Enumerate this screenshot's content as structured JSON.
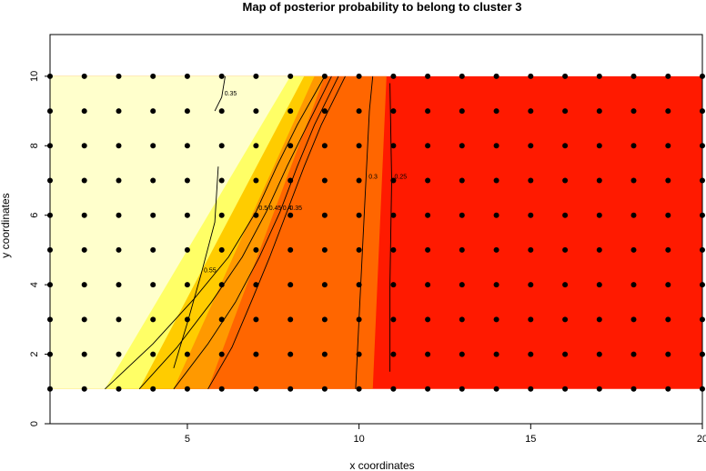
{
  "chart_data": {
    "type": "heatmap",
    "title": "Map of posterior probability to belong to cluster  3",
    "xlabel": "x coordinates",
    "ylabel": "y coordinates",
    "xlim": [
      1,
      20
    ],
    "ylim": [
      0,
      11.2
    ],
    "x_ticks": [
      5,
      10,
      15,
      20
    ],
    "y_ticks": [
      0,
      2,
      4,
      6,
      8,
      10
    ],
    "grid_points": {
      "x": [
        1,
        2,
        3,
        4,
        5,
        6,
        7,
        8,
        9,
        10,
        11,
        12,
        13,
        14,
        15,
        16,
        17,
        18,
        19,
        20
      ],
      "y": [
        1,
        2,
        3,
        4,
        5,
        6,
        7,
        8,
        9,
        10
      ]
    },
    "colors": {
      "lowest": "#ffffcc",
      "low": "#ffff66",
      "mid_low": "#ffcc00",
      "mid": "#ff9900",
      "mid_high": "#ff6600",
      "highest": "#ff1a00"
    },
    "regions": [
      {
        "label": "lowest",
        "color": "#ffffcc",
        "boundary_x": [
          [
            1,
            2.6
          ],
          [
            10,
            8.0
          ]
        ]
      },
      {
        "label": "low",
        "color": "#ffff66",
        "boundary_x": [
          [
            1,
            3.6
          ],
          [
            10,
            8.4
          ]
        ]
      },
      {
        "label": "mid_low",
        "color": "#ffcc00",
        "boundary_x": [
          [
            1,
            4.6
          ],
          [
            10,
            8.7
          ]
        ]
      },
      {
        "label": "mid",
        "color": "#ff9900",
        "boundary_x": [
          [
            1,
            5.6
          ],
          [
            10,
            9.0
          ]
        ]
      },
      {
        "label": "mid_high",
        "color": "#ff6600",
        "boundary_x": [
          [
            1,
            10.4
          ],
          [
            10,
            10.8
          ]
        ]
      },
      {
        "label": "highest",
        "color": "#ff1a00",
        "boundary_x": [
          [
            1,
            11.0
          ],
          [
            10,
            11.0
          ]
        ]
      }
    ],
    "contours": [
      {
        "label": "0.5",
        "points": [
          [
            2.6,
            1
          ],
          [
            4.0,
            2.3
          ],
          [
            5.2,
            3.6
          ],
          [
            6.2,
            4.8
          ],
          [
            7.0,
            6.1
          ],
          [
            7.6,
            7.4
          ],
          [
            8.2,
            8.6
          ],
          [
            9.0,
            10
          ]
        ]
      },
      {
        "label": "0.45",
        "points": [
          [
            3.6,
            1
          ],
          [
            4.7,
            2.2
          ],
          [
            5.7,
            3.5
          ],
          [
            6.6,
            4.8
          ],
          [
            7.3,
            6.1
          ],
          [
            7.9,
            7.4
          ],
          [
            8.5,
            8.6
          ],
          [
            9.2,
            10
          ]
        ]
      },
      {
        "label": "0.4",
        "points": [
          [
            4.6,
            1
          ],
          [
            5.6,
            2.3
          ],
          [
            6.4,
            3.5
          ],
          [
            7.1,
            4.8
          ],
          [
            7.7,
            6.1
          ],
          [
            8.2,
            7.4
          ],
          [
            8.7,
            8.6
          ],
          [
            9.4,
            10
          ]
        ]
      },
      {
        "label": "0.35",
        "points": [
          [
            5.6,
            1
          ],
          [
            6.3,
            2.2
          ],
          [
            6.9,
            3.6
          ],
          [
            7.4,
            4.8
          ],
          [
            7.9,
            6.1
          ],
          [
            8.4,
            7.4
          ],
          [
            8.9,
            8.6
          ],
          [
            9.6,
            10
          ]
        ]
      },
      {
        "label": "0.3",
        "points": [
          [
            9.9,
            1
          ],
          [
            10.0,
            3
          ],
          [
            10.1,
            5
          ],
          [
            10.2,
            7
          ],
          [
            10.3,
            9
          ],
          [
            10.4,
            10
          ]
        ]
      },
      {
        "label": "0.25",
        "points": [
          [
            10.9,
            1.5
          ],
          [
            10.9,
            4
          ],
          [
            10.95,
            7
          ],
          [
            10.9,
            9.8
          ]
        ]
      },
      {
        "label": "0.55",
        "points": [
          [
            4.6,
            1.6
          ],
          [
            5.0,
            2.9
          ],
          [
            5.4,
            4.3
          ],
          [
            5.8,
            5.8
          ],
          [
            5.9,
            7.4
          ]
        ]
      },
      {
        "label": "0.35",
        "points": [
          [
            5.8,
            9.0
          ],
          [
            6.0,
            9.4
          ],
          [
            6.1,
            10
          ]
        ]
      }
    ]
  }
}
